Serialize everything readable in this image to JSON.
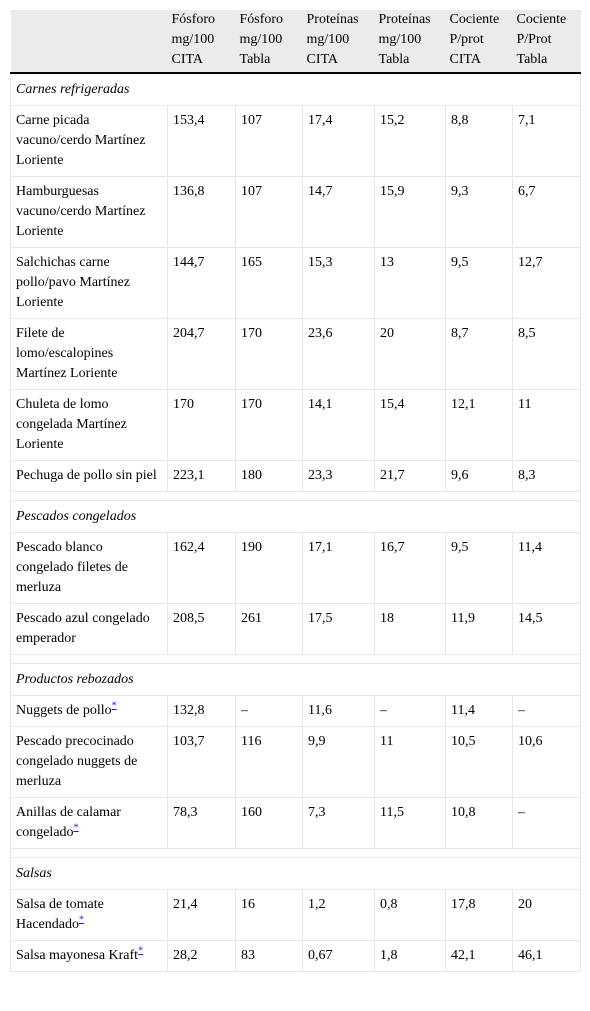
{
  "headers": [
    "",
    "Fósforo mg/100 CITA",
    "Fósforo mg/100 Tabla",
    "Proteínas mg/100 CITA",
    "Proteínas mg/100 Tabla",
    "Cociente P/prot CITA",
    "Cociente P/Prot Tabla"
  ],
  "sections": [
    {
      "title": "Carnes refrigeradas",
      "rows": [
        {
          "name": " Carne picada vacuno/cerdo Martínez Loriente",
          "fn": "",
          "values": [
            "153,4",
            "107",
            "17,4",
            "15,2",
            "8,8",
            "7,1"
          ]
        },
        {
          "name": " Hamburguesas vacuno/cerdo Martínez Loriente",
          "fn": "",
          "values": [
            "136,8",
            "107",
            "14,7",
            "15,9",
            "9,3",
            "6,7"
          ]
        },
        {
          "name": " Salchichas carne pollo/pavo Martínez Loriente",
          "fn": "",
          "values": [
            "144,7",
            "165",
            "15,3",
            "13",
            "9,5",
            "12,7"
          ]
        },
        {
          "name": " Filete de lomo/escalopines Martínez Loriente",
          "fn": "",
          "values": [
            "204,7",
            "170",
            "23,6",
            "20",
            "8,7",
            "8,5"
          ]
        },
        {
          "name": " Chuleta de lomo congelada Martínez Loriente",
          "fn": "",
          "values": [
            "170",
            "170",
            "14,1",
            "15,4",
            "12,1",
            "11"
          ]
        },
        {
          "name": " Pechuga de pollo sin piel",
          "fn": "",
          "values": [
            "223,1",
            "180",
            "23,3",
            "21,7",
            "9,6",
            "8,3"
          ]
        }
      ]
    },
    {
      "title": "Pescados congelados",
      "rows": [
        {
          "name": " Pescado blanco congelado filetes de merluza",
          "fn": "",
          "values": [
            "162,4",
            "190",
            "17,1",
            "16,7",
            "9,5",
            "11,4"
          ]
        },
        {
          "name": " Pescado azul congelado emperador",
          "fn": "",
          "values": [
            "208,5",
            "261",
            "17,5",
            "18",
            "11,9",
            "14,5"
          ]
        }
      ]
    },
    {
      "title": "Productos rebozados",
      "rows": [
        {
          "name": " Nuggets de pollo",
          "fn": "*",
          "values": [
            "132,8",
            "–",
            "11,6",
            "–",
            "11,4",
            "–"
          ]
        },
        {
          "name": " Pescado precocinado congelado nuggets de merluza",
          "fn": "",
          "values": [
            "103,7",
            "116",
            "9,9",
            "11",
            "10,5",
            "10,6"
          ]
        },
        {
          "name": " Anillas de calamar congelado",
          "fn": "*",
          "values": [
            "78,3",
            "160",
            "7,3",
            "11,5",
            "10,8",
            "–"
          ]
        }
      ]
    },
    {
      "title": "Salsas",
      "rows": [
        {
          "name": " Salsa de tomate Hacendado",
          "fn": "*",
          "values": [
            "21,4",
            "16",
            "1,2",
            "0,8",
            "17,8",
            "20"
          ]
        },
        {
          "name": " Salsa mayonesa Kraft",
          "fn": "*",
          "values": [
            "28,2",
            "83",
            "0,67",
            "1,8",
            "42,1",
            "46,1"
          ]
        }
      ]
    }
  ]
}
